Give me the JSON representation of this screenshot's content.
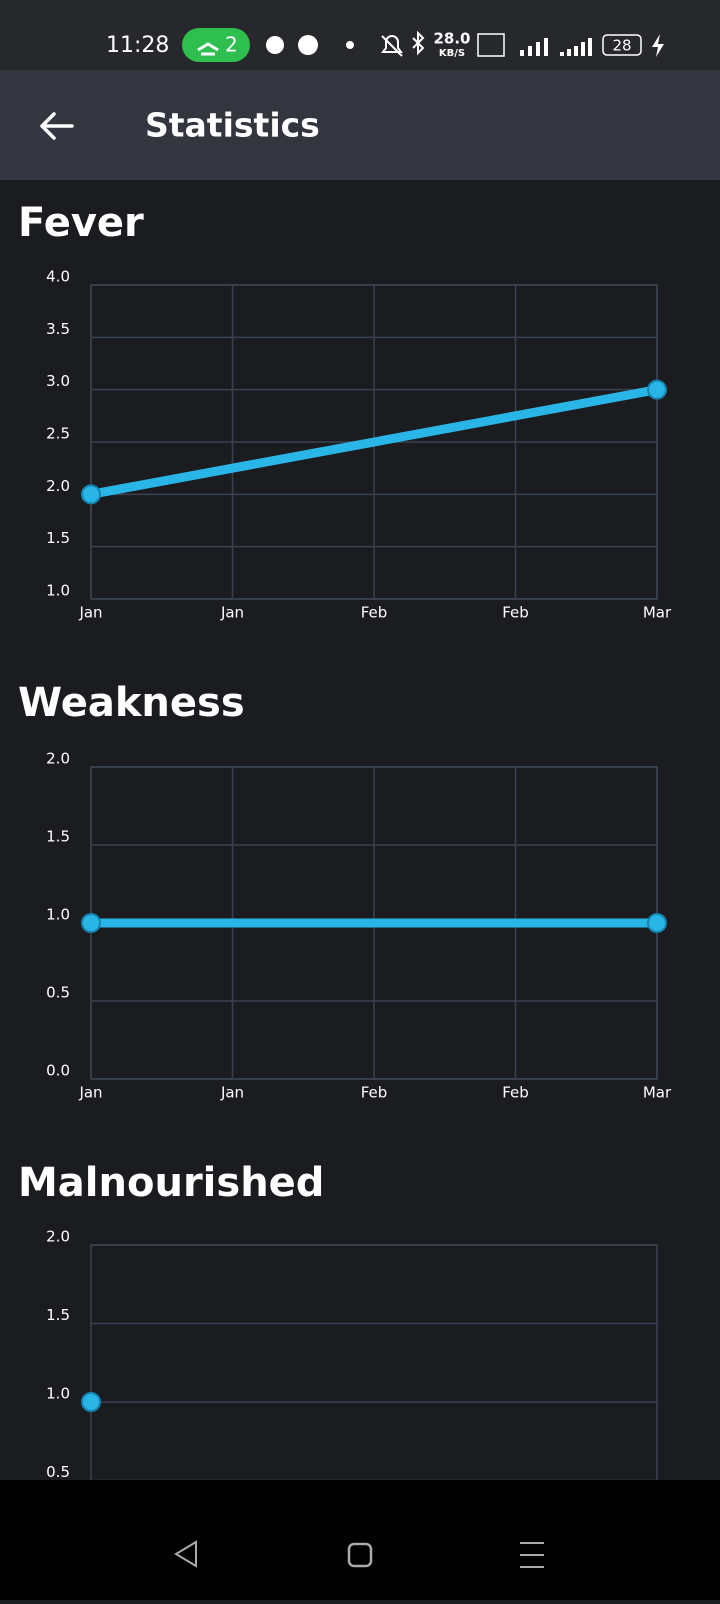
{
  "status_bar": {
    "time": "11:28",
    "hotspot_count": "2",
    "speed": "28.0",
    "speed_unit": "KB/S",
    "battery": "28"
  },
  "app_bar": {
    "title": "Statistics"
  },
  "chart_data": [
    {
      "type": "line",
      "title": "Fever",
      "color": "#29b6e6",
      "grid": true,
      "x": [
        0,
        4
      ],
      "values": [
        2,
        3
      ],
      "xlim": [
        0,
        4
      ],
      "xticks": [
        {
          "value": 0,
          "label": "Jan"
        },
        {
          "value": 1,
          "label": "Jan"
        },
        {
          "value": 2,
          "label": "Feb"
        },
        {
          "value": 3,
          "label": "Feb"
        },
        {
          "value": 4,
          "label": "Mar"
        }
      ],
      "ylim": [
        1,
        4
      ],
      "yticks": [
        {
          "value": 1,
          "label": "1.0"
        },
        1.5,
        {
          "value": 2,
          "label": "2.0"
        },
        2.5,
        {
          "value": 3,
          "label": "3.0"
        },
        3.5,
        {
          "value": 4,
          "label": "4.0"
        }
      ]
    },
    {
      "type": "line",
      "title": "Weakness",
      "color": "#29b6e6",
      "grid": true,
      "x": [
        0,
        4
      ],
      "values": [
        1,
        1
      ],
      "xlim": [
        0,
        4
      ],
      "xticks": [
        {
          "value": 0,
          "label": "Jan"
        },
        {
          "value": 1,
          "label": "Jan"
        },
        {
          "value": 2,
          "label": "Feb"
        },
        {
          "value": 3,
          "label": "Feb"
        },
        {
          "value": 4,
          "label": "Mar"
        }
      ],
      "ylim": [
        0,
        2
      ],
      "yticks": [
        {
          "value": 0,
          "label": "0.0"
        },
        0.5,
        {
          "value": 1,
          "label": "1.0"
        },
        1.5,
        {
          "value": 2,
          "label": "2.0"
        }
      ]
    },
    {
      "type": "line",
      "title": "Malnourished",
      "color": "#29b6e6",
      "grid": true,
      "x": [
        0
      ],
      "values": [
        1
      ],
      "xlim": [
        0,
        4
      ],
      "ylim": [
        0,
        2
      ],
      "yticks": [
        0.5,
        {
          "value": 1,
          "label": "1.0"
        },
        1.5,
        {
          "value": 2,
          "label": "2.0"
        }
      ]
    }
  ]
}
